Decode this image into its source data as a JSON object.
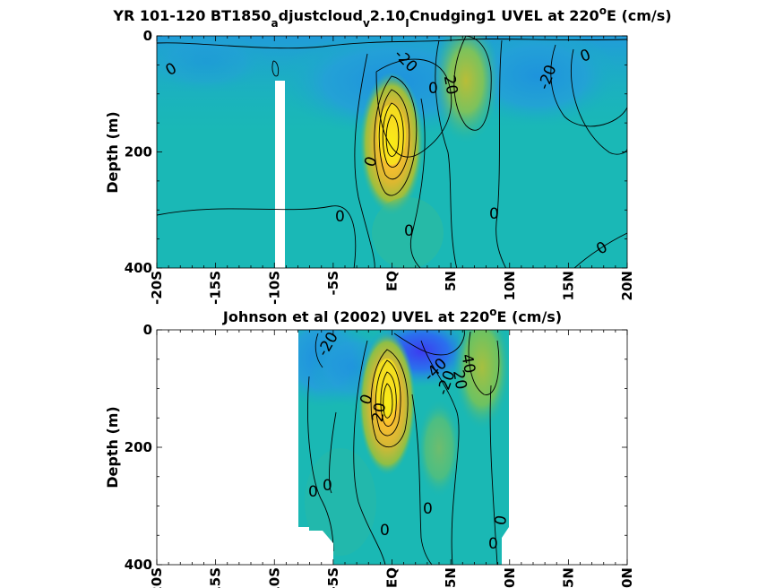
{
  "chart_data": [
    {
      "type": "heatmap",
      "title": "YR 101-120 BT1850_adjustcloud_v2.10_Cnudging1 UVEL at 220°E (cm/s)",
      "title_parts": {
        "prefix": "YR 101-120 BT1850",
        "sub1": "a",
        "mid1": "djustcloud",
        "sub2": "v",
        "mid2": "2.10",
        "sub3": "I",
        "mid3": "Cnudging1 UVEL at 220",
        "sup": "o",
        "suffix": "E (cm/s)"
      },
      "xlabel": "",
      "ylabel": "Depth (m)",
      "xticks": [
        "-20S",
        "-15S",
        "-10S",
        "-5S",
        "EQ",
        "5N",
        "10N",
        "15N",
        "20N"
      ],
      "yticks": [
        "0",
        "200",
        "400"
      ],
      "xlim": [
        -20,
        20
      ],
      "ylim": [
        0,
        400
      ],
      "contour_labels": [
        "0",
        "-20",
        "20",
        "0",
        "-20",
        "0",
        "0",
        "0",
        "0",
        "0",
        "0"
      ],
      "features": [
        {
          "kind": "jet",
          "lat": 0,
          "depth": 150,
          "value": 100
        },
        {
          "kind": "jet",
          "lat": 6.5,
          "depth": 80,
          "value": 40
        },
        {
          "kind": "jet",
          "lat": -1.5,
          "depth": 50,
          "value": -30
        },
        {
          "kind": "jet",
          "lat": 11,
          "depth": 40,
          "value": -25
        }
      ],
      "masked": [
        {
          "lat_from": -10,
          "lat_to": -9.2,
          "depth_from": 78,
          "depth_to": 400
        }
      ]
    },
    {
      "type": "heatmap",
      "title": "Johnson et al (2002) UVEL at 220°E (cm/s)",
      "title_parts": {
        "prefix": "Johnson et al (2002) UVEL at 220",
        "sup": "o",
        "suffix": "E (cm/s)"
      },
      "xlabel": "",
      "ylabel": "Depth (m)",
      "xticks": [
        "-20S",
        "-15S",
        "-10S",
        "-5S",
        "EQ",
        "5N",
        "10N",
        "15N",
        "20N"
      ],
      "yticks": [
        "0",
        "200",
        "400"
      ],
      "xlim": [
        -20,
        20
      ],
      "ylim": [
        0,
        400
      ],
      "data_extent_lat": [
        -8,
        10
      ],
      "contour_labels": [
        "-20",
        "0",
        "20",
        "-40",
        "-20",
        "40",
        "20",
        "0",
        "0",
        "0",
        "0",
        "0",
        "0"
      ],
      "features": [
        {
          "kind": "jet",
          "lat": 0,
          "depth": 110,
          "value": 110
        },
        {
          "kind": "jet",
          "lat": 8.5,
          "depth": 40,
          "value": 40
        },
        {
          "kind": "jet",
          "lat": 3,
          "depth": 20,
          "value": -50
        },
        {
          "kind": "jet",
          "lat": -6,
          "depth": 60,
          "value": -30
        }
      ]
    }
  ]
}
